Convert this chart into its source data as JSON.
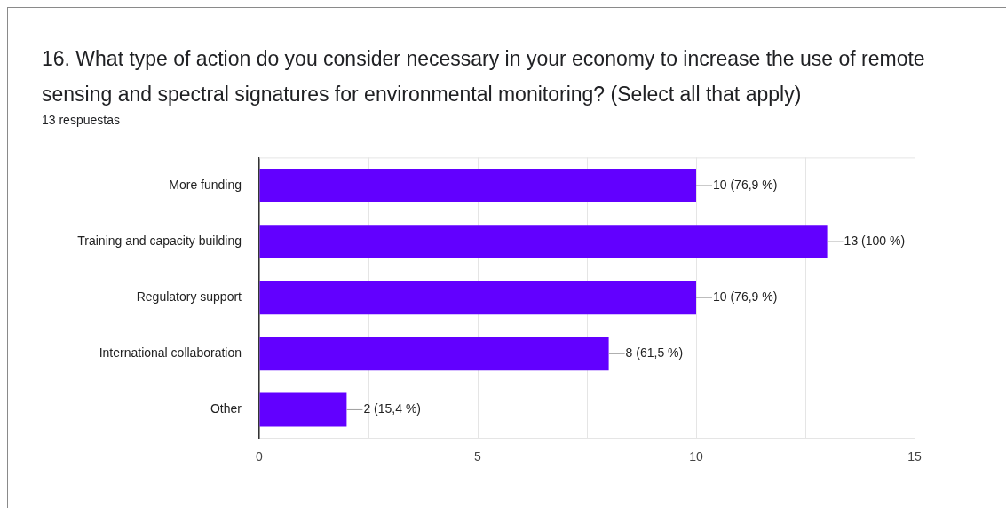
{
  "chart_data": {
    "type": "bar",
    "orientation": "horizontal",
    "title": "16. What type of action do you consider necessary in your economy to increase the use of remote sensing and spectral signatures for environmental monitoring? (Select all that apply)",
    "subtitle": "13 respuestas",
    "categories": [
      "More funding",
      "Training and capacity building",
      "Regulatory support",
      "International collaboration",
      "Other"
    ],
    "values": [
      10,
      13,
      10,
      8,
      2
    ],
    "color": "#6200ff",
    "value_labels": [
      "10 (76,9 %)",
      "13 (100 %)",
      "10 (76,9 %)",
      "8 (61,5 %)",
      "2 (15,4 %)"
    ],
    "xlim": [
      0,
      15
    ],
    "xticks": [
      0,
      {
        "value": 2.5,
        "label": null
      },
      5,
      {
        "value": 7.5,
        "label": null
      },
      10,
      {
        "value": 12.5,
        "label": null
      },
      15
    ],
    "grid": "x"
  }
}
